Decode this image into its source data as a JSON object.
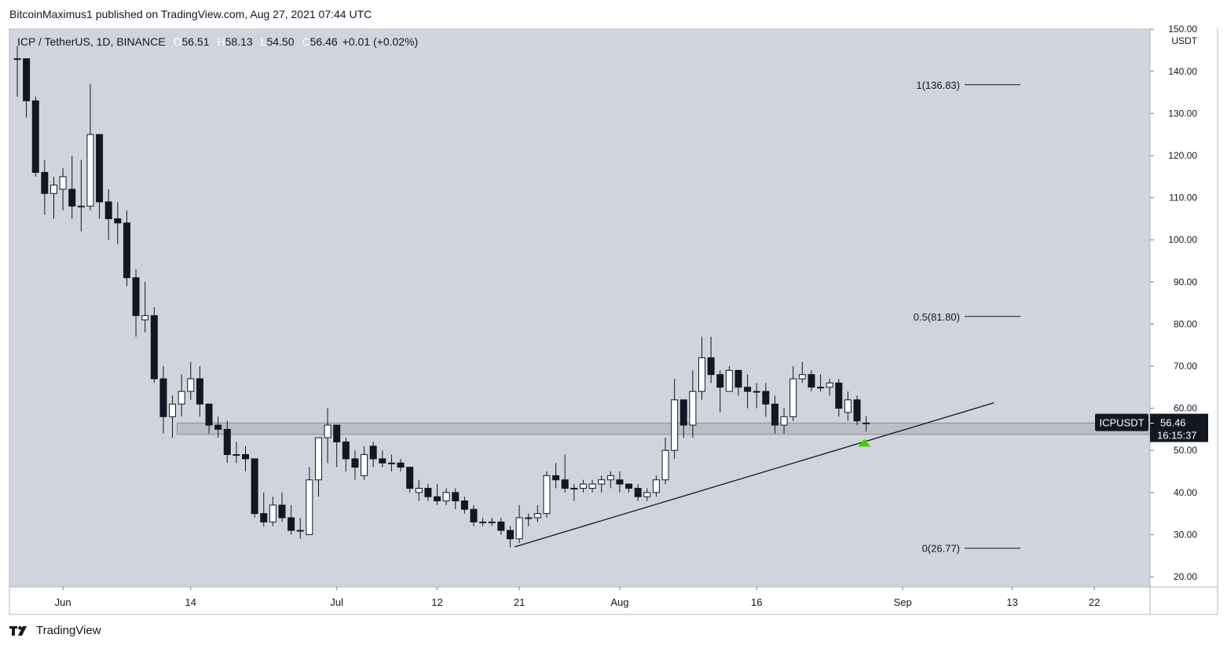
{
  "header": {
    "published_line": "BitcoinMaximus1 published on TradingView.com, Aug 27, 2021 07:44 UTC"
  },
  "footer": {
    "brand": "TradingView"
  },
  "chart_data": {
    "type": "candlestick",
    "symbol_line": {
      "symbol": "ICP / TetherUS, 1D, BINANCE",
      "o_label": "O",
      "o_value": "56.51",
      "h_label": "H",
      "h_value": "58.13",
      "l_label": "L",
      "l_value": "54.50",
      "c_label": "C",
      "c_value": "56.46",
      "change": "+0.01 (+0.02%)"
    },
    "y_axis": {
      "unit": "USDT",
      "ylim": [
        17,
        150
      ],
      "ticks": [
        "150.00",
        "140.00",
        "130.00",
        "120.00",
        "110.00",
        "100.00",
        "90.00",
        "80.00",
        "70.00",
        "60.00",
        "50.00",
        "40.00",
        "30.00",
        "20.00"
      ]
    },
    "x_axis": {
      "labels": [
        {
          "text": "Jun",
          "day": 5
        },
        {
          "text": "14",
          "day": 19
        },
        {
          "text": "Jul",
          "day": 35
        },
        {
          "text": "12",
          "day": 46
        },
        {
          "text": "21",
          "day": 55
        },
        {
          "text": "Aug",
          "day": 66
        },
        {
          "text": "16",
          "day": 81
        },
        {
          "text": "Sep",
          "day": 97
        },
        {
          "text": "13",
          "day": 109
        },
        {
          "text": "22",
          "day": 118
        }
      ]
    },
    "candles": [
      {
        "o": 143,
        "h": 146,
        "l": 134,
        "c": 143
      },
      {
        "o": 143,
        "h": 143,
        "l": 129,
        "c": 133
      },
      {
        "o": 133,
        "h": 134,
        "l": 115,
        "c": 116
      },
      {
        "o": 116,
        "h": 119,
        "l": 106,
        "c": 111
      },
      {
        "o": 111,
        "h": 115,
        "l": 105,
        "c": 113
      },
      {
        "o": 112,
        "h": 117,
        "l": 107,
        "c": 115
      },
      {
        "o": 112,
        "h": 120,
        "l": 105,
        "c": 108
      },
      {
        "o": 108,
        "h": 119,
        "l": 102,
        "c": 108
      },
      {
        "o": 108,
        "h": 137,
        "l": 107,
        "c": 125
      },
      {
        "o": 125,
        "h": 125,
        "l": 105,
        "c": 109
      },
      {
        "o": 109,
        "h": 112,
        "l": 100,
        "c": 105
      },
      {
        "o": 105,
        "h": 109,
        "l": 99,
        "c": 104
      },
      {
        "o": 104,
        "h": 107,
        "l": 89,
        "c": 91
      },
      {
        "o": 91,
        "h": 93,
        "l": 77,
        "c": 82
      },
      {
        "o": 81,
        "h": 90,
        "l": 78,
        "c": 82
      },
      {
        "o": 82,
        "h": 84,
        "l": 66,
        "c": 67
      },
      {
        "o": 67,
        "h": 70,
        "l": 54,
        "c": 58
      },
      {
        "o": 58,
        "h": 63,
        "l": 53,
        "c": 61
      },
      {
        "o": 61,
        "h": 68,
        "l": 58,
        "c": 64
      },
      {
        "o": 64,
        "h": 71,
        "l": 62,
        "c": 67
      },
      {
        "o": 67,
        "h": 70,
        "l": 58,
        "c": 61
      },
      {
        "o": 61,
        "h": 61,
        "l": 54,
        "c": 56
      },
      {
        "o": 56,
        "h": 58,
        "l": 53,
        "c": 55
      },
      {
        "o": 55,
        "h": 57,
        "l": 47,
        "c": 49
      },
      {
        "o": 49,
        "h": 52,
        "l": 47,
        "c": 49
      },
      {
        "o": 49,
        "h": 51,
        "l": 45,
        "c": 48
      },
      {
        "o": 48,
        "h": 48,
        "l": 34,
        "c": 35
      },
      {
        "o": 35,
        "h": 40,
        "l": 32,
        "c": 33
      },
      {
        "o": 33,
        "h": 39,
        "l": 32,
        "c": 37
      },
      {
        "o": 37,
        "h": 40,
        "l": 33,
        "c": 34
      },
      {
        "o": 34,
        "h": 37,
        "l": 30,
        "c": 31
      },
      {
        "o": 31,
        "h": 34,
        "l": 29,
        "c": 31
      },
      {
        "o": 30,
        "h": 46,
        "l": 30,
        "c": 43
      },
      {
        "o": 43,
        "h": 52,
        "l": 39,
        "c": 53
      },
      {
        "o": 53,
        "h": 60,
        "l": 47,
        "c": 56
      },
      {
        "o": 56,
        "h": 56,
        "l": 46,
        "c": 52
      },
      {
        "o": 52,
        "h": 53,
        "l": 45,
        "c": 48
      },
      {
        "o": 48,
        "h": 50,
        "l": 43,
        "c": 46
      },
      {
        "o": 44,
        "h": 51,
        "l": 43,
        "c": 49
      },
      {
        "o": 51,
        "h": 52,
        "l": 46,
        "c": 48
      },
      {
        "o": 48,
        "h": 50,
        "l": 46,
        "c": 47
      },
      {
        "o": 47,
        "h": 49,
        "l": 45,
        "c": 47
      },
      {
        "o": 47,
        "h": 48,
        "l": 45,
        "c": 46
      },
      {
        "o": 46,
        "h": 46,
        "l": 40,
        "c": 41
      },
      {
        "o": 40,
        "h": 43,
        "l": 38,
        "c": 41
      },
      {
        "o": 41,
        "h": 42,
        "l": 38,
        "c": 39
      },
      {
        "o": 39,
        "h": 42,
        "l": 37,
        "c": 38
      },
      {
        "o": 38,
        "h": 41,
        "l": 37,
        "c": 40
      },
      {
        "o": 40,
        "h": 41,
        "l": 36,
        "c": 38
      },
      {
        "o": 38,
        "h": 39,
        "l": 35,
        "c": 36
      },
      {
        "o": 36,
        "h": 37,
        "l": 32,
        "c": 33
      },
      {
        "o": 33,
        "h": 34,
        "l": 32,
        "c": 33
      },
      {
        "o": 33,
        "h": 34,
        "l": 32,
        "c": 33
      },
      {
        "o": 33,
        "h": 34,
        "l": 30,
        "c": 31
      },
      {
        "o": 31,
        "h": 32,
        "l": 27,
        "c": 29
      },
      {
        "o": 29,
        "h": 37,
        "l": 28,
        "c": 34
      },
      {
        "o": 34,
        "h": 35,
        "l": 32,
        "c": 34
      },
      {
        "o": 34,
        "h": 37,
        "l": 33,
        "c": 35
      },
      {
        "o": 35,
        "h": 45,
        "l": 34,
        "c": 44
      },
      {
        "o": 44,
        "h": 47,
        "l": 41,
        "c": 43
      },
      {
        "o": 43,
        "h": 49,
        "l": 40,
        "c": 41
      },
      {
        "o": 41,
        "h": 42,
        "l": 38,
        "c": 41
      },
      {
        "o": 41,
        "h": 43,
        "l": 40,
        "c": 42
      },
      {
        "o": 41,
        "h": 43,
        "l": 40,
        "c": 42
      },
      {
        "o": 42,
        "h": 44,
        "l": 40,
        "c": 43
      },
      {
        "o": 43,
        "h": 45,
        "l": 41,
        "c": 44
      },
      {
        "o": 43,
        "h": 45,
        "l": 40,
        "c": 42
      },
      {
        "o": 42,
        "h": 42,
        "l": 40,
        "c": 41
      },
      {
        "o": 41,
        "h": 42,
        "l": 38,
        "c": 39
      },
      {
        "o": 39,
        "h": 41,
        "l": 38,
        "c": 40
      },
      {
        "o": 40,
        "h": 44,
        "l": 39,
        "c": 43
      },
      {
        "o": 43,
        "h": 53,
        "l": 42,
        "c": 50
      },
      {
        "o": 50,
        "h": 67,
        "l": 48,
        "c": 62
      },
      {
        "o": 62,
        "h": 62,
        "l": 53,
        "c": 56
      },
      {
        "o": 56,
        "h": 69,
        "l": 53,
        "c": 64
      },
      {
        "o": 64,
        "h": 77,
        "l": 62,
        "c": 72
      },
      {
        "o": 72,
        "h": 77,
        "l": 66,
        "c": 68
      },
      {
        "o": 68,
        "h": 69,
        "l": 59,
        "c": 65
      },
      {
        "o": 64,
        "h": 70,
        "l": 64,
        "c": 69
      },
      {
        "o": 69,
        "h": 69,
        "l": 63,
        "c": 65
      },
      {
        "o": 65,
        "h": 68,
        "l": 60,
        "c": 64
      },
      {
        "o": 64,
        "h": 66,
        "l": 60,
        "c": 64
      },
      {
        "o": 64,
        "h": 66,
        "l": 58,
        "c": 61
      },
      {
        "o": 61,
        "h": 63,
        "l": 54,
        "c": 56
      },
      {
        "o": 56,
        "h": 60,
        "l": 54,
        "c": 58
      },
      {
        "o": 58,
        "h": 70,
        "l": 57,
        "c": 67
      },
      {
        "o": 67,
        "h": 71,
        "l": 66,
        "c": 68
      },
      {
        "o": 68,
        "h": 69,
        "l": 64,
        "c": 65
      },
      {
        "o": 65,
        "h": 68,
        "l": 64,
        "c": 65
      },
      {
        "o": 65,
        "h": 67,
        "l": 63,
        "c": 66
      },
      {
        "o": 66,
        "h": 67,
        "l": 58,
        "c": 60
      },
      {
        "o": 59,
        "h": 64,
        "l": 57,
        "c": 62
      },
      {
        "o": 62,
        "h": 63,
        "l": 56,
        "c": 57
      },
      {
        "o": 56.51,
        "h": 58.13,
        "l": 54.5,
        "c": 56.46
      }
    ],
    "support_zone": {
      "low": 53.8,
      "high": 56.5,
      "day_start": 17.5,
      "day_end": 124.5
    },
    "trendline": {
      "start_day": 54.5,
      "start_value": 27.1,
      "end_day": 107,
      "end_value": 61.3
    },
    "fib_levels": [
      {
        "label": "1(136.83)",
        "value": 136.83
      },
      {
        "label": "0.5(81.80)",
        "value": 81.8
      },
      {
        "label": "0(26.77)",
        "value": 26.77
      }
    ],
    "price_tag": {
      "symbol": "ICPUSDT",
      "price": "56.46",
      "countdown": "16:15:37",
      "value": 56.46
    },
    "marker": {
      "day": 92.8,
      "value": 51.8,
      "color": "#39d400"
    },
    "colors": {
      "bg": "#d1d4dc",
      "up": "#ffffff",
      "down": "#131722",
      "zone": "#b4b7bf"
    }
  }
}
